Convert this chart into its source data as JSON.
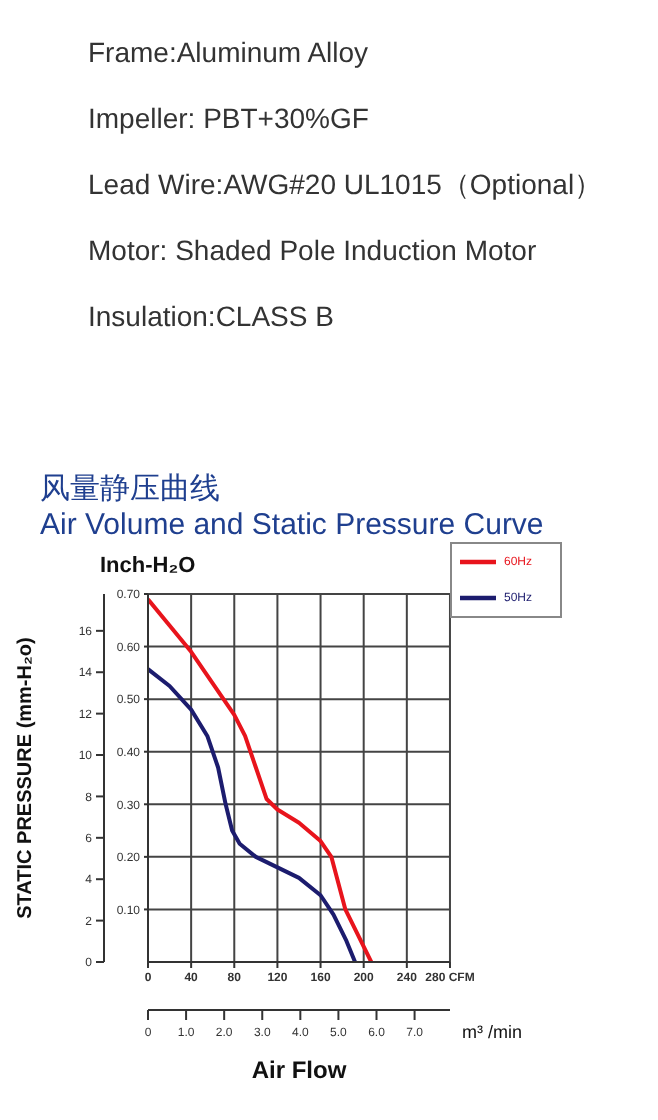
{
  "chart_data": {
    "type": "line",
    "title": "风量静压曲线",
    "subtitle": "Air Volume and Static Pressure Curve",
    "annotations": [
      "Frame:Aluminum Alloy",
      "Impeller: PBT+30%GF",
      "Lead Wire:AWG#20 UL1015（Optional）",
      "Motor: Shaded Pole Induction Motor",
      "Insulation:CLASS B"
    ],
    "xlabel": "Air Flow",
    "ylabel": "Inch-H₂O",
    "y2label": "STATIC PRESSURE (mm-H₂o)",
    "x2label": "m³ /min",
    "xlim": [
      0,
      280
    ],
    "xticks": [
      0,
      40,
      80,
      120,
      160,
      200,
      240,
      {
        "value": 280,
        "label": "280 CFM"
      }
    ],
    "ylim": [
      0,
      0.7
    ],
    "yticks": [
      {
        "value": 0.1,
        "label": "0.10"
      },
      {
        "value": 0.2,
        "label": "0.20"
      },
      {
        "value": 0.3,
        "label": "0.30"
      },
      {
        "value": 0.4,
        "label": "0.40"
      },
      {
        "value": 0.5,
        "label": "0.50"
      },
      {
        "value": 0.6,
        "label": "0.60"
      },
      {
        "value": 0.7,
        "label": "0.70"
      }
    ],
    "y2lim": [
      0,
      17.78
    ],
    "y2ticks": [
      0,
      2,
      4,
      6,
      8,
      10,
      12,
      14,
      16
    ],
    "x2lim": [
      0,
      7.93
    ],
    "x2ticks": [
      0,
      {
        "value": 1,
        "label": "1.0"
      },
      {
        "value": 2,
        "label": "2.0"
      },
      {
        "value": 3,
        "label": "3.0"
      },
      {
        "value": 4,
        "label": "4.0"
      },
      {
        "value": 5,
        "label": "5.0"
      },
      {
        "value": 6,
        "label": "6.0"
      },
      {
        "value": 7,
        "label": "7.0"
      }
    ],
    "grid": true,
    "legend": "top right",
    "marker": "none",
    "line_style": "solid",
    "series": [
      {
        "name": "60Hz",
        "color": "#e8141c",
        "x": [
          0,
          20,
          40,
          60,
          80,
          90,
          100,
          110,
          120,
          140,
          160,
          170,
          183,
          195,
          207
        ],
        "values": [
          0.69,
          0.64,
          0.59,
          0.53,
          0.47,
          0.43,
          0.37,
          0.31,
          0.29,
          0.265,
          0.23,
          0.2,
          0.1,
          0.05,
          0
        ]
      },
      {
        "name": "50Hz",
        "color": "#1c1c6e",
        "x": [
          0,
          20,
          40,
          55,
          65,
          72,
          78,
          85,
          100,
          120,
          140,
          160,
          172,
          184,
          192
        ],
        "values": [
          0.557,
          0.525,
          0.48,
          0.43,
          0.37,
          0.3,
          0.25,
          0.225,
          0.2,
          0.18,
          0.16,
          0.127,
          0.09,
          0.04,
          0
        ]
      }
    ]
  }
}
